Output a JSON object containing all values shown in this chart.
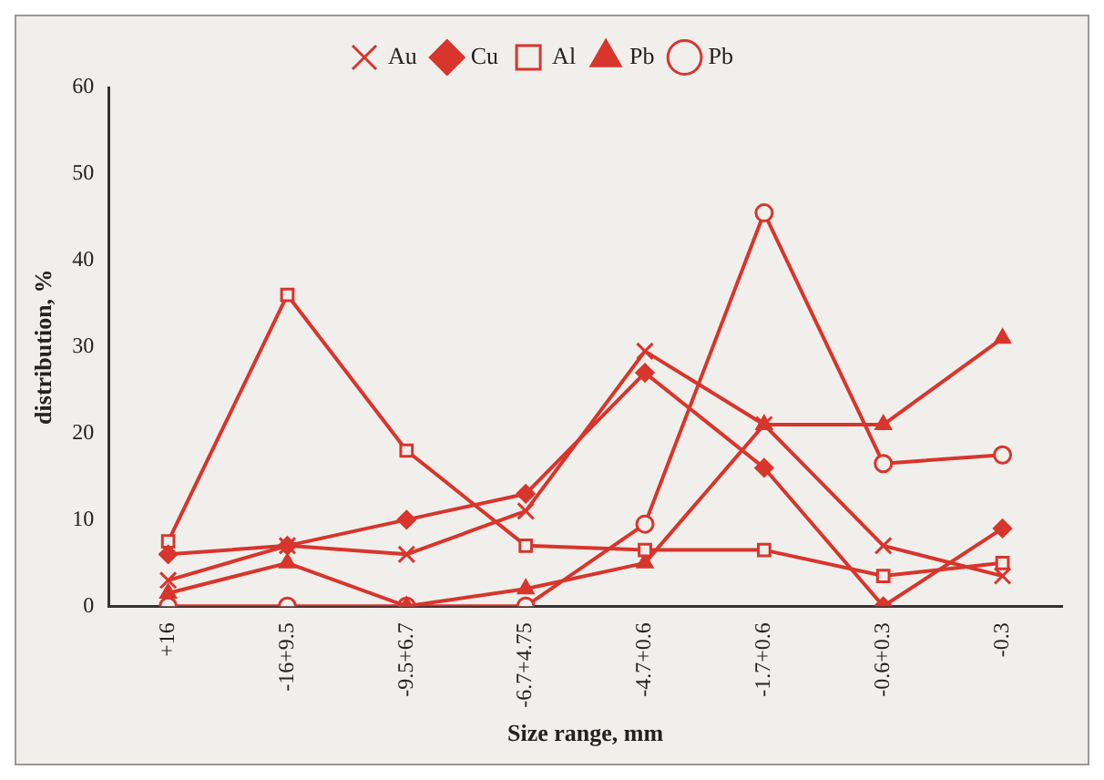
{
  "chart_data": {
    "type": "line",
    "xlabel": "Size range, mm",
    "ylabel": "distribution, %",
    "categories": [
      "+16",
      "-16+9.5",
      "-9.5+6.7",
      "-6.7+4.75",
      "-4.7+0.6",
      "-1.7+0.6",
      "-0.6+0.3",
      "-0.3"
    ],
    "series": [
      {
        "name": "Cu",
        "color": "#d8352c",
        "marker": "diamond",
        "values": [
          6,
          7,
          10,
          13,
          27,
          16,
          0,
          9
        ]
      },
      {
        "name": "Al",
        "color": "#d8352c",
        "marker": "square",
        "values": [
          7.5,
          36,
          18,
          7,
          6.5,
          6.5,
          3.5,
          5
        ]
      },
      {
        "name": "Pb",
        "color": "#d8352c",
        "marker": "triangle",
        "values": [
          1.5,
          5,
          0,
          2,
          5,
          21,
          21,
          31
        ]
      },
      {
        "name": "Au",
        "color": "#d8352c",
        "marker": "cross",
        "values": [
          3,
          7,
          6,
          11,
          29.5,
          21,
          7,
          3.5
        ]
      },
      {
        "name": "Pb",
        "color": "#d8352c",
        "marker": "circle",
        "values": [
          0,
          0,
          0,
          0,
          9.5,
          45.5,
          16.5,
          17.5
        ]
      }
    ],
    "ylim": [
      0,
      60
    ],
    "yticks": [
      0,
      10,
      20,
      30,
      40,
      50,
      60
    ],
    "grid": false,
    "legend": "top"
  }
}
